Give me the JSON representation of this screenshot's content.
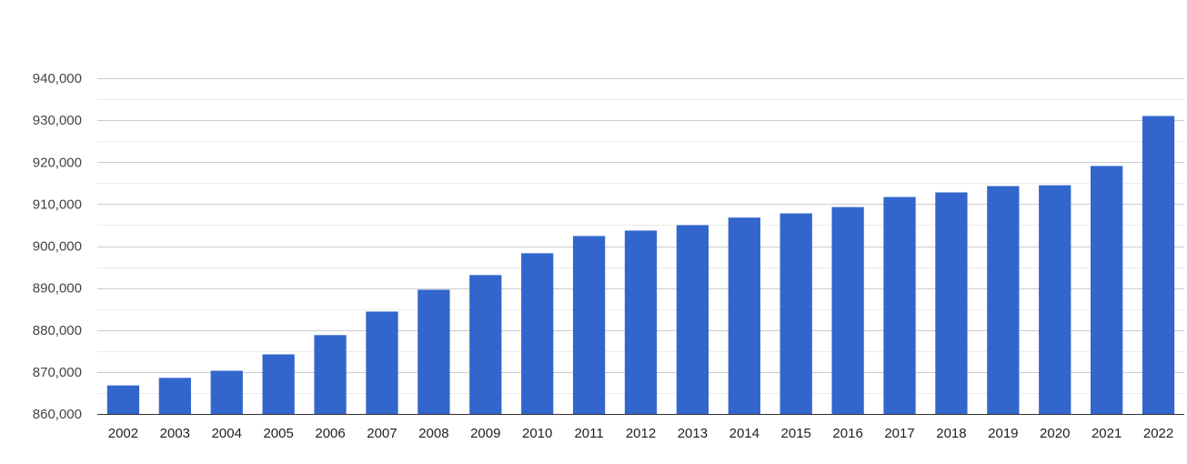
{
  "chart_data": {
    "type": "bar",
    "title": "",
    "xlabel": "",
    "ylabel": "",
    "categories": [
      "2002",
      "2003",
      "2004",
      "2005",
      "2006",
      "2007",
      "2008",
      "2009",
      "2010",
      "2011",
      "2012",
      "2013",
      "2014",
      "2015",
      "2016",
      "2017",
      "2018",
      "2019",
      "2020",
      "2021",
      "2022"
    ],
    "values": [
      866800,
      868600,
      870300,
      874200,
      878800,
      884400,
      889600,
      893100,
      898300,
      902400,
      903700,
      905000,
      906800,
      907800,
      909300,
      911700,
      912800,
      914300,
      914500,
      919100,
      931000
    ],
    "ylim": [
      860000,
      940000
    ],
    "yticks": [
      860000,
      870000,
      880000,
      890000,
      900000,
      910000,
      920000,
      930000,
      940000
    ],
    "ytick_labels": [
      "860,000",
      "870,000",
      "880,000",
      "890,000",
      "900,000",
      "910,000",
      "920,000",
      "930,000",
      "940,000"
    ],
    "grid": true,
    "bar_color": "#3366cc"
  }
}
